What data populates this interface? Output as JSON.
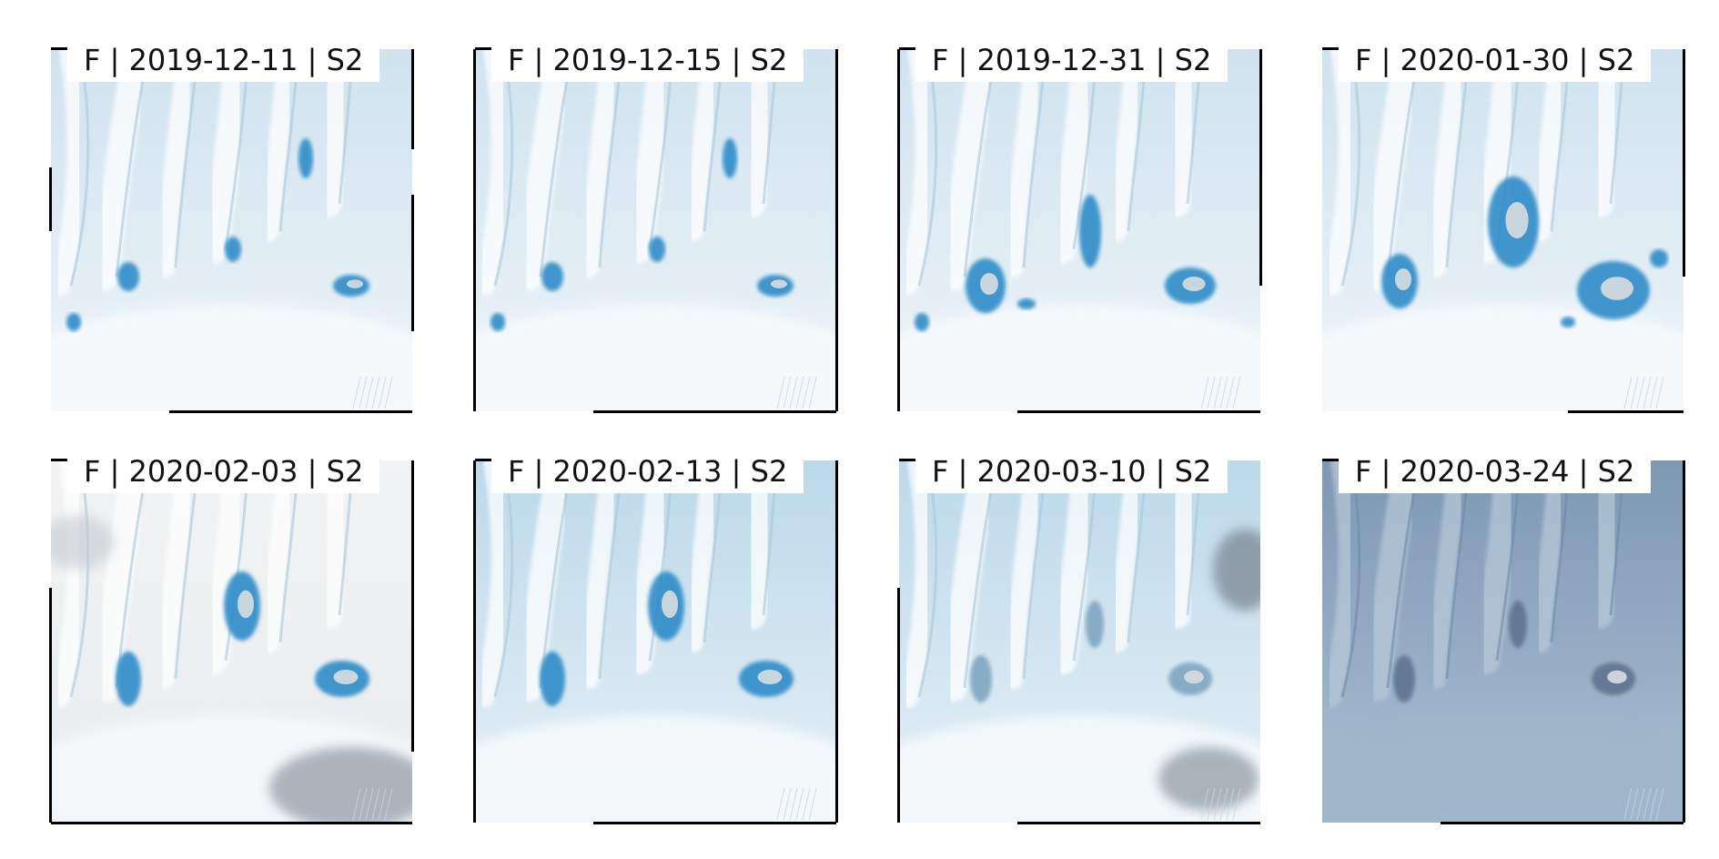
{
  "panels": [
    {
      "label": "F | 2019-12-11 | S2",
      "tone": "clear",
      "lakes": "few",
      "cloud": "none"
    },
    {
      "label": "F | 2019-12-15 | S2",
      "tone": "clear",
      "lakes": "few",
      "cloud": "none"
    },
    {
      "label": "F | 2019-12-31 | S2",
      "tone": "clear",
      "lakes": "many",
      "cloud": "none"
    },
    {
      "label": "F | 2020-01-30 | S2",
      "tone": "clear",
      "lakes": "peak",
      "cloud": "none"
    },
    {
      "label": "F | 2020-02-03 | S2",
      "tone": "hazy",
      "lakes": "mid",
      "cloud": "heavy"
    },
    {
      "label": "F | 2020-02-13 | S2",
      "tone": "blue",
      "lakes": "mid",
      "cloud": "none"
    },
    {
      "label": "F | 2020-03-10 | S2",
      "tone": "blue",
      "lakes": "faint",
      "cloud": "patchy"
    },
    {
      "label": "F | 2020-03-24 | S2",
      "tone": "dark",
      "lakes": "faint",
      "cloud": "none"
    }
  ],
  "colors": {
    "ice_light": "#eef4f8",
    "ice_blue": "#cfe3ef",
    "lake": "#2e8cc8",
    "lake_dark": "#1f5f9e",
    "dark_tone": "#8aa3bd",
    "cloud": "#9aa3ad"
  }
}
